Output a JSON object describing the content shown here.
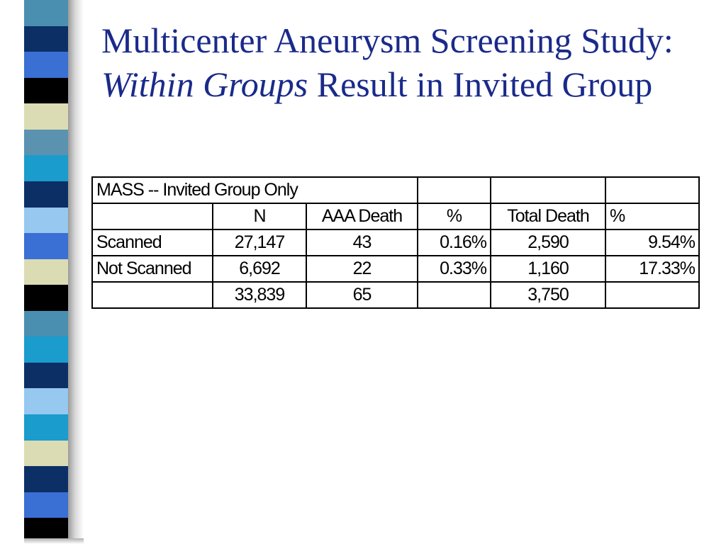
{
  "title": {
    "part1": "Multicenter Aneurysm Screening Study: ",
    "italic": "Within Groups",
    "part2": " Result in Invited Group"
  },
  "table": {
    "caption": "MASS -- Invited Group Only",
    "headers": [
      "",
      "N",
      "AAA Death",
      "%",
      "Total Death",
      "%"
    ],
    "rows": [
      [
        "Scanned",
        "27,147",
        "43",
        "0.16%",
        "2,590",
        "9.54%"
      ],
      [
        "Not Scanned",
        "6,692",
        "22",
        "0.33%",
        "1,160",
        "17.33%"
      ],
      [
        "",
        "33,839",
        "65",
        "",
        "3,750",
        ""
      ]
    ]
  },
  "decoration": {
    "stripe_colors": [
      "#4a8fb0",
      "#0c2f66",
      "#3a6fd4",
      "#000000",
      "#dcdcb4",
      "#5a92b0",
      "#1a9ccc",
      "#0c2f66",
      "#96c8f0",
      "#3a6fd4",
      "#dcdcb4",
      "#000000",
      "#4a8fb0",
      "#1a9ccc",
      "#0c2f66",
      "#96c8f0",
      "#1a9ccc",
      "#dcdcb4",
      "#0c2f66",
      "#3a6fd4",
      "#000000"
    ]
  }
}
